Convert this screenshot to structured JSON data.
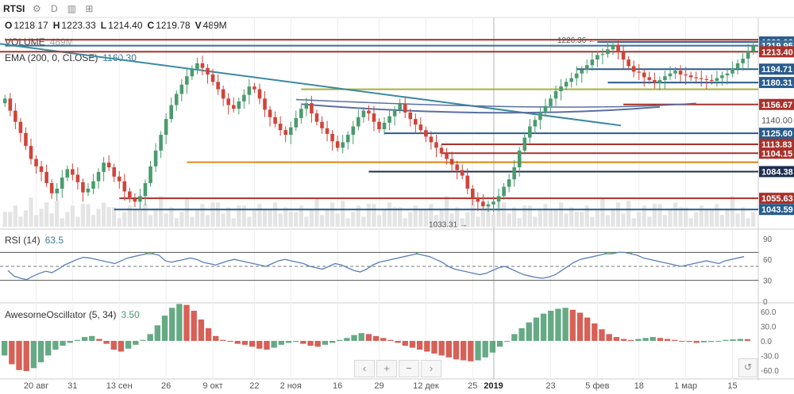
{
  "toolbar": {
    "symbol": "RTSI",
    "gear_icon": "⚙",
    "interval": "D",
    "compare_icon": "▥",
    "indicators_icon": "⊞"
  },
  "ohlc": {
    "o_label": "O",
    "o": "1218.17",
    "h_label": "H",
    "h": "1223.33",
    "l_label": "L",
    "l": "1214.40",
    "c_label": "C",
    "c": "1219.78",
    "v_label": "V",
    "v": "489M"
  },
  "volume_legend": {
    "label": "VOLUME",
    "value": "489M"
  },
  "ema_legend": {
    "label": "EMA (200, 0, CLOSE)",
    "value": "1160.30"
  },
  "rsi_legend": {
    "label": "RSI (14)",
    "value": "63.5"
  },
  "ao_legend": {
    "label": "AwesomeOscillator (5, 34)",
    "value": "3.50"
  },
  "colors": {
    "up": "#4a9b6e",
    "down": "#d0443a",
    "trend_teal": "#3a8aa0",
    "level_blue": "#2a5c8c",
    "level_red": "#a8322b",
    "level_orange": "#e08a1e",
    "level_olive": "#a6b03a",
    "grid": "#eeeeee"
  },
  "price_axis": {
    "min": 1025,
    "max": 1235,
    "plain_ticks": [
      "1140.00"
    ],
    "tags": [
      {
        "value": 1223.98,
        "label": "1223.98",
        "color": "#2a5c8c"
      },
      {
        "value": 1219.95,
        "label": "1219.95",
        "color": "#3a6e9a"
      },
      {
        "value": 1213.4,
        "label": "1213.40",
        "color": "#a8322b"
      },
      {
        "value": 1194.71,
        "label": "1194.71",
        "color": "#2a5c8c"
      },
      {
        "value": 1180.31,
        "label": "1180.31",
        "color": "#2a5c8c"
      },
      {
        "value": 1156.67,
        "label": "1156.67",
        "color": "#a8322b"
      },
      {
        "value": 1125.6,
        "label": "1125.60",
        "color": "#2a5c8c"
      },
      {
        "value": 1113.83,
        "label": "1113.83",
        "color": "#a8322b"
      },
      {
        "value": 1104.15,
        "label": "1104.15",
        "color": "#a8322b"
      },
      {
        "value": 1084.38,
        "label": "1084.38",
        "color": "#1e2f4f"
      },
      {
        "value": 1055.63,
        "label": "1055.63",
        "color": "#a8322b"
      },
      {
        "value": 1043.59,
        "label": "1043.59",
        "color": "#2a5c8c"
      }
    ]
  },
  "annotations": {
    "high_label": "1226.36 ←",
    "low_label": "1033.31 →"
  },
  "rsi_axis": {
    "ticks": [
      "90",
      "60",
      "30",
      "0"
    ],
    "min": 0,
    "max": 100
  },
  "ao_axis": {
    "ticks": [
      "60.0",
      "30.0",
      "0.0",
      "-30.0",
      "-60.0"
    ],
    "min": -75,
    "max": 75
  },
  "time_axis": [
    {
      "label": "20 авг",
      "i": 6
    },
    {
      "label": "31",
      "i": 13
    },
    {
      "label": "13 сен",
      "i": 22
    },
    {
      "label": "26",
      "i": 31
    },
    {
      "label": "9 окт",
      "i": 40
    },
    {
      "label": "22",
      "i": 48
    },
    {
      "label": "2 ноя",
      "i": 55
    },
    {
      "label": "16",
      "i": 64
    },
    {
      "label": "29",
      "i": 72
    },
    {
      "label": "12 дек",
      "i": 81
    },
    {
      "label": "25",
      "i": 90
    },
    {
      "label": "2019",
      "i": 94
    },
    {
      "label": "23",
      "i": 105
    },
    {
      "label": "5 фев",
      "i": 114
    },
    {
      "label": "18",
      "i": 122
    },
    {
      "label": "1 мар",
      "i": 131
    },
    {
      "label": "15",
      "i": 140
    }
  ],
  "navbar": {
    "left": "‹",
    "plus": "+",
    "minus": "−",
    "right": "›",
    "reset": "↺"
  },
  "chart_data": {
    "type": "candlestick",
    "title": "RTSI",
    "ylim": [
      1025,
      1235
    ],
    "closes": [
      1163,
      1150,
      1138,
      1126,
      1112,
      1098,
      1090,
      1084,
      1072,
      1061,
      1066,
      1078,
      1087,
      1081,
      1073,
      1062,
      1066,
      1074,
      1084,
      1094,
      1089,
      1079,
      1074,
      1063,
      1055,
      1052,
      1058,
      1072,
      1090,
      1107,
      1124,
      1141,
      1156,
      1168,
      1178,
      1187,
      1195,
      1201,
      1196,
      1189,
      1181,
      1173,
      1163,
      1156,
      1152,
      1160,
      1167,
      1176,
      1173,
      1163,
      1151,
      1143,
      1136,
      1129,
      1124,
      1132,
      1142,
      1152,
      1158,
      1147,
      1138,
      1131,
      1125,
      1117,
      1110,
      1116,
      1124,
      1133,
      1143,
      1150,
      1147,
      1138,
      1130,
      1137,
      1144,
      1151,
      1157,
      1148,
      1141,
      1135,
      1129,
      1122,
      1116,
      1110,
      1104,
      1098,
      1092,
      1086,
      1080,
      1066,
      1056,
      1052,
      1047,
      1049,
      1052,
      1058,
      1068,
      1076,
      1089,
      1107,
      1121,
      1133,
      1140,
      1148,
      1155,
      1163,
      1171,
      1176,
      1181,
      1185,
      1190,
      1194,
      1199,
      1205,
      1210,
      1211,
      1216,
      1221,
      1213,
      1205,
      1198,
      1192,
      1191,
      1186,
      1183,
      1180,
      1183,
      1187,
      1190,
      1193,
      1189,
      1188,
      1186,
      1185,
      1184,
      1183,
      1182,
      1185,
      1188,
      1190,
      1195,
      1201,
      1206,
      1214,
      1220
    ],
    "volume_range": [
      0,
      600
    ],
    "rsi": [
      44,
      36,
      33,
      31,
      36,
      40,
      43,
      41,
      46,
      52,
      56,
      60,
      63,
      62,
      60,
      58,
      56,
      54,
      58,
      62,
      64,
      66,
      68,
      68,
      66,
      58,
      56,
      58,
      60,
      62,
      60,
      56,
      54,
      52,
      55,
      58,
      60,
      58,
      56,
      54,
      52,
      50,
      54,
      58,
      60,
      58,
      56,
      54,
      50,
      48,
      46,
      50,
      54,
      52,
      48,
      44,
      42,
      46,
      52,
      56,
      58,
      60,
      62,
      64,
      66,
      68,
      66,
      64,
      60,
      56,
      50,
      46,
      44,
      42,
      40,
      38,
      40,
      44,
      48,
      50,
      46,
      42,
      38,
      36,
      34,
      33,
      35,
      38,
      44,
      50,
      56,
      60,
      62,
      64,
      66,
      68,
      68,
      70,
      70,
      68,
      66,
      62,
      60,
      58,
      56,
      54,
      52,
      50,
      52,
      54,
      56,
      58,
      56,
      54,
      58,
      60,
      62,
      64
    ],
    "ao": [
      -30,
      -48,
      -60,
      -62,
      -56,
      -44,
      -30,
      -18,
      -10,
      -4,
      2,
      8,
      10,
      4,
      -6,
      -18,
      -22,
      -16,
      -8,
      2,
      14,
      32,
      52,
      68,
      76,
      74,
      62,
      44,
      26,
      10,
      2,
      -2,
      -6,
      -8,
      -12,
      -16,
      -18,
      -14,
      -8,
      -4,
      -2,
      -6,
      -10,
      -12,
      -8,
      -4,
      2,
      6,
      12,
      16,
      14,
      10,
      6,
      2,
      -4,
      -10,
      -14,
      -18,
      -22,
      -26,
      -30,
      -34,
      -38,
      -40,
      -42,
      -40,
      -34,
      -24,
      -12,
      0,
      14,
      26,
      38,
      48,
      56,
      62,
      66,
      68,
      64,
      58,
      48,
      36,
      24,
      14,
      8,
      4,
      2,
      4,
      6,
      8,
      6,
      4,
      2,
      0,
      -2,
      -4,
      -3,
      -2,
      0,
      2,
      3,
      4,
      3.5
    ],
    "levels": [
      {
        "value": 1226.36,
        "color": "#a8322b",
        "start": 0
      },
      {
        "value": 1223.98,
        "color": "#2a5c8c",
        "start": 114
      },
      {
        "value": 1219.95,
        "color": "#3a6e9a",
        "start": 0
      },
      {
        "value": 1194.71,
        "color": "#2a5c8c",
        "start": 110
      },
      {
        "value": 1180.31,
        "color": "#2a5c8c",
        "start": 116
      },
      {
        "value": 1173.0,
        "color": "#a6b03a",
        "start": 57
      },
      {
        "value": 1156.67,
        "color": "#a8322b",
        "start": 119
      },
      {
        "value": 1125.6,
        "color": "#2a5c8c",
        "start": 73
      },
      {
        "value": 1113.83,
        "color": "#a8322b",
        "start": 84
      },
      {
        "value": 1104.15,
        "color": "#a8322b",
        "start": 84
      },
      {
        "value": 1094.5,
        "color": "#a6b03a",
        "start": 48
      },
      {
        "value": 1084.38,
        "color": "#1e2f4f",
        "start": 70
      },
      {
        "value": 1055.63,
        "color": "#a8322b",
        "start": 22
      },
      {
        "value": 1043.59,
        "color": "#2a5c8c",
        "start": 21
      }
    ]
  }
}
